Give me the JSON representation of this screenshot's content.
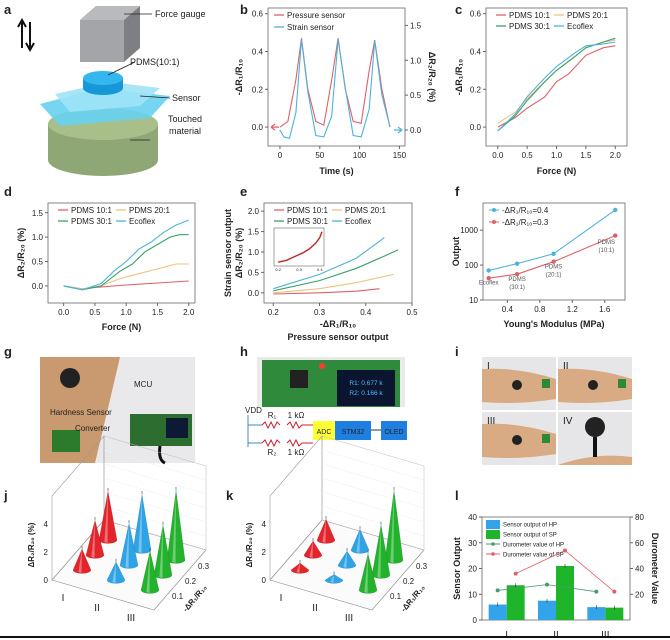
{
  "panel_letters": [
    "a",
    "b",
    "c",
    "d",
    "e",
    "f",
    "g",
    "h",
    "i",
    "j",
    "k",
    "l"
  ],
  "panel_a": {
    "labels": {
      "force_gauge": "Force gauge",
      "pdms": "PDMS(10:1)",
      "sensor": "Sensor",
      "touched_material": [
        "Touched",
        "material"
      ]
    },
    "arrow_icon": "up-down-arrows"
  },
  "panel_g": {
    "labels": {
      "mcu": "MCU",
      "hardness_sensor": "Hardness Sensor",
      "converter": "Converter"
    }
  },
  "panel_h": {
    "screen": [
      "R1: 0.677 k",
      "R2: 0.166 k"
    ],
    "circuit": {
      "vdd": "VDD",
      "r1": "R₁",
      "r1_value": "1 kΩ",
      "r2": "R₂",
      "r2_value": "1 kΩ",
      "adc": "ADC",
      "mcu": "STM32",
      "display": "OLED"
    },
    "colors": {
      "adc": "#ffff33",
      "block": "#1e7fe0"
    }
  },
  "panel_i": {
    "photo_labels": [
      "I",
      "II",
      "III",
      "IV"
    ]
  },
  "chart_data": [
    {
      "panel": "b",
      "type": "line",
      "xlabel": "Time (s)",
      "ylabel": "-ΔR₁/R₁₀",
      "y2label": "ΔR₂/R₂₀ (%)",
      "xlim": [
        -15,
        157
      ],
      "ylim": [
        -0.1,
        0.63
      ],
      "y2lim": [
        -0.23,
        1.75
      ],
      "x_ticks": [
        "0",
        "50",
        "100",
        "150"
      ],
      "y_ticks": [
        "0.0",
        "0.2",
        "0.4",
        "0.6"
      ],
      "y2_ticks": [
        "0.0",
        "0.5",
        "1.0",
        "1.5"
      ],
      "legend_position": "top-left",
      "series": [
        {
          "name": "Pressure sensor",
          "axis": "left",
          "color": "#e0606a",
          "points": [
            [
              0,
              0
            ],
            [
              10,
              0.03
            ],
            [
              20,
              0.25
            ],
            [
              27,
              0.47
            ],
            [
              35,
              0.2
            ],
            [
              45,
              0.03
            ],
            [
              55,
              0.01
            ],
            [
              65,
              0.25
            ],
            [
              73,
              0.47
            ],
            [
              82,
              0.2
            ],
            [
              92,
              0.03
            ],
            [
              102,
              0.02
            ],
            [
              112,
              0.3
            ],
            [
              119,
              0.46
            ],
            [
              128,
              0.2
            ],
            [
              138,
              0.0
            ]
          ]
        },
        {
          "name": "Strain sensor",
          "axis": "right",
          "color": "#4cb3d9",
          "points": [
            [
              0,
              0.0
            ],
            [
              5,
              -0.1
            ],
            [
              12,
              -0.12
            ],
            [
              20,
              0.25
            ],
            [
              27,
              1.3
            ],
            [
              35,
              0.55
            ],
            [
              45,
              -0.08
            ],
            [
              55,
              -0.1
            ],
            [
              65,
              0.2
            ],
            [
              73,
              1.3
            ],
            [
              82,
              0.6
            ],
            [
              92,
              -0.08
            ],
            [
              102,
              -0.1
            ],
            [
              112,
              0.3
            ],
            [
              119,
              1.28
            ],
            [
              128,
              0.5
            ],
            [
              138,
              0.05
            ]
          ]
        }
      ]
    },
    {
      "panel": "c",
      "type": "line",
      "xlabel": "Force (N)",
      "ylabel": "-ΔR₁/R₁₀",
      "xlim": [
        -0.2,
        2.2
      ],
      "ylim": [
        -0.1,
        0.63
      ],
      "x_ticks": [
        "0.0",
        "0.5",
        "1.0",
        "1.5",
        "2.0"
      ],
      "y_ticks": [
        "0.0",
        "0.2",
        "0.4",
        "0.6"
      ],
      "legend_position": "top",
      "series": [
        {
          "name": "PDMS 10:1",
          "color": "#e0606a",
          "points": [
            [
              0,
              0
            ],
            [
              0.3,
              0.05
            ],
            [
              0.5,
              0.1
            ],
            [
              0.8,
              0.16
            ],
            [
              1,
              0.24
            ],
            [
              1.2,
              0.28
            ],
            [
              1.5,
              0.38
            ],
            [
              1.8,
              0.42
            ],
            [
              2,
              0.43
            ]
          ]
        },
        {
          "name": "PDMS 20:1",
          "color": "#f0c080",
          "points": [
            [
              0,
              0.02
            ],
            [
              0.3,
              0.08
            ],
            [
              0.5,
              0.15
            ],
            [
              0.8,
              0.24
            ],
            [
              1,
              0.3
            ],
            [
              1.3,
              0.37
            ],
            [
              1.5,
              0.42
            ],
            [
              1.8,
              0.45
            ],
            [
              2,
              0.46
            ]
          ]
        },
        {
          "name": "PDMS 30:1",
          "color": "#3aa06a",
          "points": [
            [
              0,
              -0.02
            ],
            [
              0.3,
              0.06
            ],
            [
              0.5,
              0.14
            ],
            [
              0.8,
              0.24
            ],
            [
              1,
              0.3
            ],
            [
              1.3,
              0.37
            ],
            [
              1.5,
              0.42
            ],
            [
              1.8,
              0.45
            ],
            [
              2,
              0.47
            ]
          ]
        },
        {
          "name": "Ecoflex",
          "color": "#4cb3d9",
          "points": [
            [
              0,
              -0.02
            ],
            [
              0.3,
              0.07
            ],
            [
              0.5,
              0.16
            ],
            [
              0.8,
              0.26
            ],
            [
              1,
              0.32
            ],
            [
              1.3,
              0.39
            ],
            [
              1.5,
              0.43
            ],
            [
              1.8,
              0.44
            ],
            [
              2,
              0.45
            ]
          ]
        }
      ]
    },
    {
      "panel": "d",
      "type": "line",
      "xlabel": "Force (N)",
      "ylabel": "ΔR₂/R₂₀ (%)",
      "xlim": [
        -0.25,
        2.1
      ],
      "ylim": [
        -0.35,
        1.7
      ],
      "x_ticks": [
        "0.0",
        "0.5",
        "1.0",
        "1.5",
        "2.0"
      ],
      "y_ticks": [
        "0.0",
        "0.5",
        "1.0",
        "1.5"
      ],
      "legend_position": "top",
      "series": [
        {
          "name": "PDMS 10:1",
          "color": "#e0606a",
          "points": [
            [
              0,
              0
            ],
            [
              0.3,
              -0.06
            ],
            [
              0.5,
              -0.03
            ],
            [
              1,
              0.02
            ],
            [
              1.5,
              0.06
            ],
            [
              2,
              0.1
            ]
          ]
        },
        {
          "name": "PDMS 20:1",
          "color": "#f0c080",
          "points": [
            [
              0,
              0
            ],
            [
              0.3,
              -0.06
            ],
            [
              0.6,
              0
            ],
            [
              0.9,
              0.15
            ],
            [
              1.2,
              0.25
            ],
            [
              1.5,
              0.35
            ],
            [
              1.8,
              0.45
            ],
            [
              2,
              0.45
            ]
          ]
        },
        {
          "name": "PDMS 30:1",
          "color": "#3aa06a",
          "points": [
            [
              0,
              0
            ],
            [
              0.3,
              -0.08
            ],
            [
              0.6,
              0
            ],
            [
              0.9,
              0.3
            ],
            [
              1.1,
              0.45
            ],
            [
              1.3,
              0.7
            ],
            [
              1.5,
              0.85
            ],
            [
              1.7,
              1.0
            ],
            [
              1.85,
              1.05
            ],
            [
              2,
              1.05
            ]
          ]
        },
        {
          "name": "Ecoflex",
          "color": "#4cb3d9",
          "points": [
            [
              0,
              0
            ],
            [
              0.3,
              -0.08
            ],
            [
              0.6,
              0.05
            ],
            [
              0.8,
              0.3
            ],
            [
              1.0,
              0.5
            ],
            [
              1.2,
              0.75
            ],
            [
              1.4,
              0.9
            ],
            [
              1.6,
              1.1
            ],
            [
              1.8,
              1.25
            ],
            [
              2,
              1.35
            ]
          ]
        }
      ]
    },
    {
      "panel": "e",
      "type": "line",
      "xlabel": "-ΔR₁/R₁₀",
      "xlabel2": "Pressure sensor output",
      "ylabel": "ΔR₂/R₂₀ (%)",
      "ylabel2": "Strain sensor output",
      "xlim": [
        0.18,
        0.5
      ],
      "ylim": [
        -0.25,
        2.2
      ],
      "x_ticks": [
        "0.2",
        "0.3",
        "0.4",
        "0.5"
      ],
      "y_ticks": [
        "0.0",
        "0.5",
        "1.0",
        "1.5",
        "2.0"
      ],
      "legend_position": "top",
      "series": [
        {
          "name": "PDMS 10:1",
          "color": "#e0606a",
          "points": [
            [
              0.2,
              -0.03
            ],
            [
              0.3,
              0.0
            ],
            [
              0.38,
              0.04
            ],
            [
              0.43,
              0.1
            ]
          ]
        },
        {
          "name": "PDMS 20:1",
          "color": "#f0c080",
          "points": [
            [
              0.2,
              0.0
            ],
            [
              0.3,
              0.1
            ],
            [
              0.38,
              0.25
            ],
            [
              0.46,
              0.45
            ]
          ]
        },
        {
          "name": "PDMS 30:1",
          "color": "#3aa06a",
          "points": [
            [
              0.2,
              0.05
            ],
            [
              0.3,
              0.3
            ],
            [
              0.38,
              0.6
            ],
            [
              0.44,
              0.9
            ],
            [
              0.47,
              1.05
            ]
          ]
        },
        {
          "name": "Ecoflex",
          "color": "#4cb3d9",
          "points": [
            [
              0.2,
              0.1
            ],
            [
              0.3,
              0.45
            ],
            [
              0.38,
              0.85
            ],
            [
              0.44,
              1.35
            ]
          ]
        }
      ],
      "inset": {
        "x_ticks": [
          "0.2",
          "0.3",
          "0.4"
        ],
        "xlim": [
          0.18,
          0.42
        ],
        "ylim": [
          0.0,
          0.1
        ],
        "points": [
          [
            0.2,
            0.01
          ],
          [
            0.24,
            0.015
          ],
          [
            0.28,
            0.025
          ],
          [
            0.32,
            0.035
          ],
          [
            0.35,
            0.045
          ],
          [
            0.38,
            0.06
          ],
          [
            0.4,
            0.075
          ],
          [
            0.41,
            0.09
          ]
        ],
        "color": "#c0282c"
      }
    },
    {
      "panel": "f",
      "type": "line",
      "yscale": "log",
      "xlabel": "Young's Modulus (MPa)",
      "ylabel": "Output",
      "xlim": [
        0.1,
        1.85
      ],
      "ylim": [
        10,
        6000
      ],
      "x_ticks": [
        "0.4",
        "0.8",
        "1.2",
        "1.6"
      ],
      "y_ticks": [
        "10",
        "100",
        "1000"
      ],
      "legend_position": "top-left",
      "series": [
        {
          "name": "-ΔR₁/R₁₀=0.4",
          "color": "#4cb3d9",
          "points": [
            [
              0.17,
              70
            ],
            [
              0.52,
              110
            ],
            [
              0.97,
              210
            ],
            [
              1.73,
              3800
            ]
          ]
        },
        {
          "name": "-ΔR₁/R₁₀=0.3",
          "color": "#e0606a",
          "points": [
            [
              0.17,
              42
            ],
            [
              0.52,
              55
            ],
            [
              0.97,
              125
            ],
            [
              1.73,
              700
            ]
          ]
        }
      ],
      "annotations": [
        {
          "text": "Ecoflex",
          "x": 0.17,
          "y": 28
        },
        {
          "text": [
            "PDMS",
            "(30:1)"
          ],
          "x": 0.52,
          "y": 35
        },
        {
          "text": [
            "PDMS",
            "(20:1)"
          ],
          "x": 0.97,
          "y": 80
        },
        {
          "text": [
            "PDMS",
            "(10:1)"
          ],
          "x": 1.62,
          "y": 400
        }
      ]
    },
    {
      "panel": "j",
      "type": "bar3d",
      "zlabel": "ΔR₂/R₂₀ (%)",
      "ylabel": "-ΔR₁/R₁₀",
      "categories": [
        "I",
        "II",
        "III"
      ],
      "depth_ticks": [
        "0.1",
        "0.2",
        "0.3"
      ],
      "z_ticks": [
        "0",
        "2",
        "4"
      ],
      "colors": [
        "#e3242b",
        "#2ea3e6",
        "#22b22c"
      ],
      "values": [
        [
          1.5,
          2.5,
          3.5
        ],
        [
          1.3,
          3.0,
          4.0
        ],
        [
          2.8,
          3.6,
          5.0
        ]
      ]
    },
    {
      "panel": "k",
      "type": "bar3d",
      "zlabel": "ΔR₂/R₂₀ (%)",
      "ylabel": "-ΔR₁/R₁₀",
      "categories": [
        "I",
        "II",
        "III"
      ],
      "depth_ticks": [
        "0.1",
        "0.2",
        "0.3"
      ],
      "z_ticks": [
        "0",
        "2",
        "4"
      ],
      "colors": [
        "#e3242b",
        "#2ea3e6",
        "#22b22c"
      ],
      "values": [
        [
          0.5,
          1.0,
          1.5
        ],
        [
          0.4,
          1.0,
          1.5
        ],
        [
          2.6,
          3.6,
          5.0
        ]
      ]
    },
    {
      "panel": "l",
      "type": "bar",
      "ylabel": "Sensor Output",
      "y2label": "Durometer Value",
      "categories": [
        "I",
        "II",
        "III"
      ],
      "ylim": [
        0,
        40
      ],
      "y2lim": [
        0,
        80
      ],
      "y_ticks": [
        "0",
        "10",
        "20",
        "30",
        "40"
      ],
      "y2_ticks": [
        "20",
        "40",
        "60",
        "80"
      ],
      "legend_position": "top-left",
      "bars": [
        {
          "name": "Sensor output of HP",
          "color": "#33a3ea",
          "values": [
            6,
            7.5,
            5
          ]
        },
        {
          "name": "Sensor output of SP",
          "color": "#1fb52a",
          "values": [
            13.5,
            21,
            4.8
          ]
        }
      ],
      "lines": [
        {
          "name": "Durometer value of HP",
          "color": "#4a9a70",
          "values": [
            23,
            27.5,
            22
          ]
        },
        {
          "name": "Durometer value of SP",
          "color": "#e0606a",
          "values": [
            36,
            54,
            22
          ]
        }
      ]
    }
  ]
}
